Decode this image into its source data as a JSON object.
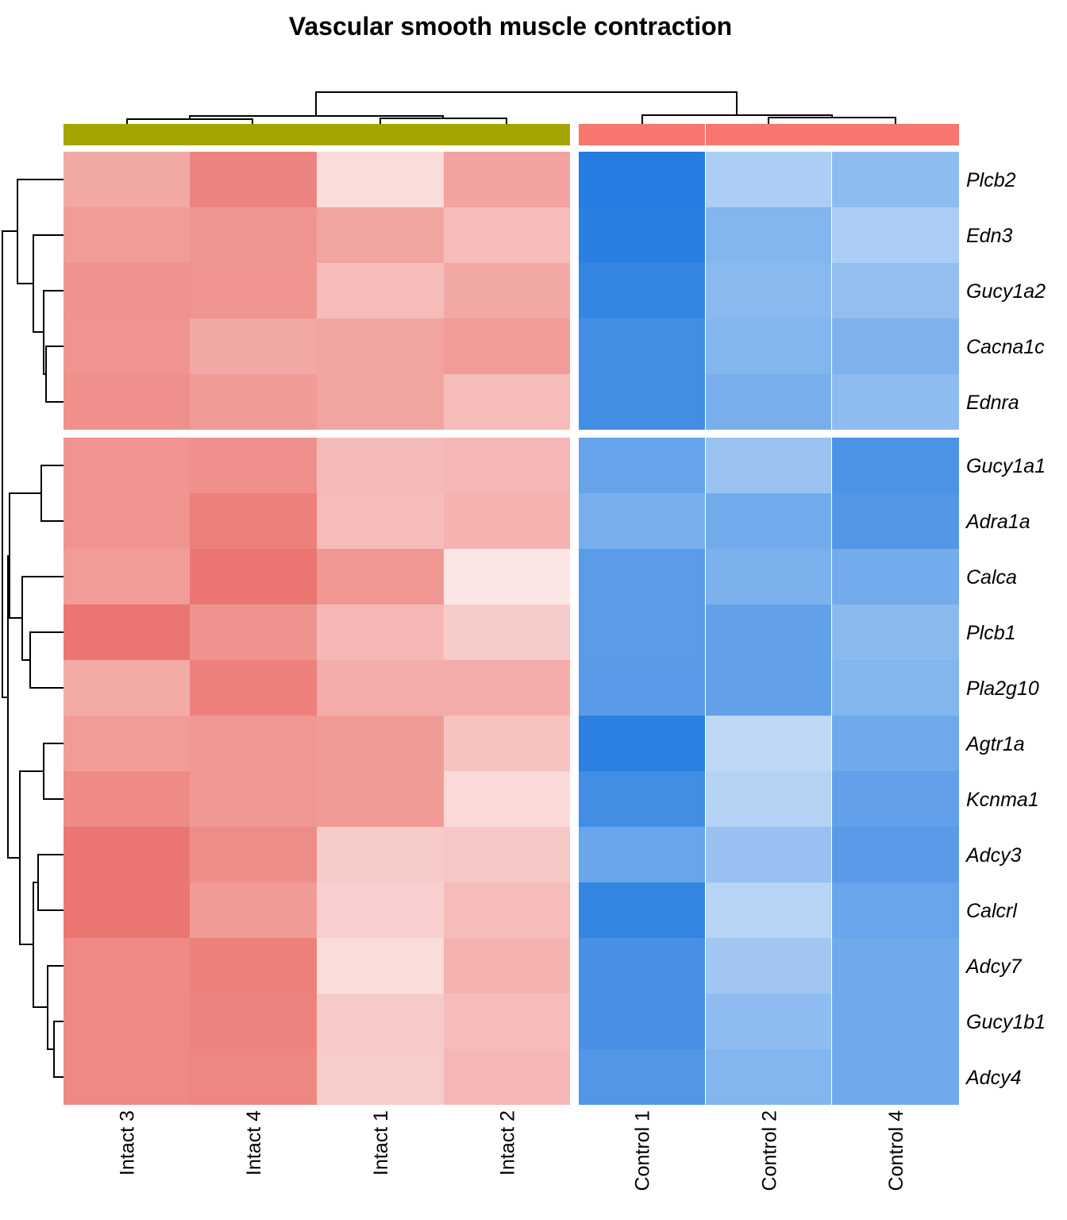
{
  "chart_data": {
    "type": "heatmap",
    "title": "Vascular smooth muscle contraction",
    "columns": [
      "Intact 3",
      "Intact 4",
      "Intact 1",
      "Intact 2",
      "Control 1",
      "Control 2",
      "Control 4"
    ],
    "column_groups": [
      {
        "name": "Intact",
        "color": "#A3A500",
        "columns": [
          "Intact 3",
          "Intact 4",
          "Intact 1",
          "Intact 2"
        ]
      },
      {
        "name": "Control",
        "color": "#F8766D",
        "columns": [
          "Control 1",
          "Control 2",
          "Control 4"
        ]
      }
    ],
    "rows": [
      "Plcb2",
      "Edn3",
      "Gucy1a2",
      "Cacna1c",
      "Ednra",
      "Gucy1a1",
      "Adra1a",
      "Calca",
      "Plcb1",
      "Pla2g10",
      "Agtr1a",
      "Kcnma1",
      "Adcy3",
      "Calcrl",
      "Adcy7",
      "Gucy1b1",
      "Adcy4"
    ],
    "row_clusters": [
      5,
      12
    ],
    "color_scale": {
      "low": "#1E78E0",
      "mid": "#FFFFFF",
      "high": "#E8605A",
      "range": [
        -1,
        1
      ]
    },
    "values": [
      [
        0.55,
        0.78,
        0.22,
        0.58,
        -0.97,
        -0.37,
        -0.5
      ],
      [
        0.62,
        0.66,
        0.57,
        0.42,
        -0.95,
        -0.55,
        -0.37
      ],
      [
        0.68,
        0.67,
        0.42,
        0.55,
        -0.9,
        -0.52,
        -0.48
      ],
      [
        0.67,
        0.55,
        0.57,
        0.62,
        -0.84,
        -0.55,
        -0.57
      ],
      [
        0.7,
        0.63,
        0.57,
        0.42,
        -0.84,
        -0.6,
        -0.5
      ],
      [
        0.67,
        0.7,
        0.43,
        0.45,
        -0.68,
        -0.45,
        -0.8
      ],
      [
        0.67,
        0.8,
        0.42,
        0.48,
        -0.59,
        -0.62,
        -0.77
      ],
      [
        0.62,
        0.86,
        0.65,
        0.16,
        -0.73,
        -0.58,
        -0.62
      ],
      [
        0.86,
        0.68,
        0.45,
        0.33,
        -0.73,
        -0.7,
        -0.52
      ],
      [
        0.53,
        0.8,
        0.52,
        0.52,
        -0.74,
        -0.7,
        -0.55
      ],
      [
        0.62,
        0.65,
        0.63,
        0.38,
        -0.94,
        -0.29,
        -0.64
      ],
      [
        0.73,
        0.65,
        0.63,
        0.23,
        -0.84,
        -0.33,
        -0.7
      ],
      [
        0.86,
        0.72,
        0.33,
        0.35,
        -0.67,
        -0.46,
        -0.74
      ],
      [
        0.86,
        0.63,
        0.3,
        0.42,
        -0.9,
        -0.32,
        -0.67
      ],
      [
        0.74,
        0.8,
        0.22,
        0.48,
        -0.82,
        -0.42,
        -0.63
      ],
      [
        0.74,
        0.78,
        0.34,
        0.42,
        -0.82,
        -0.5,
        -0.63
      ],
      [
        0.74,
        0.76,
        0.32,
        0.45,
        -0.77,
        -0.55,
        -0.63
      ]
    ]
  }
}
